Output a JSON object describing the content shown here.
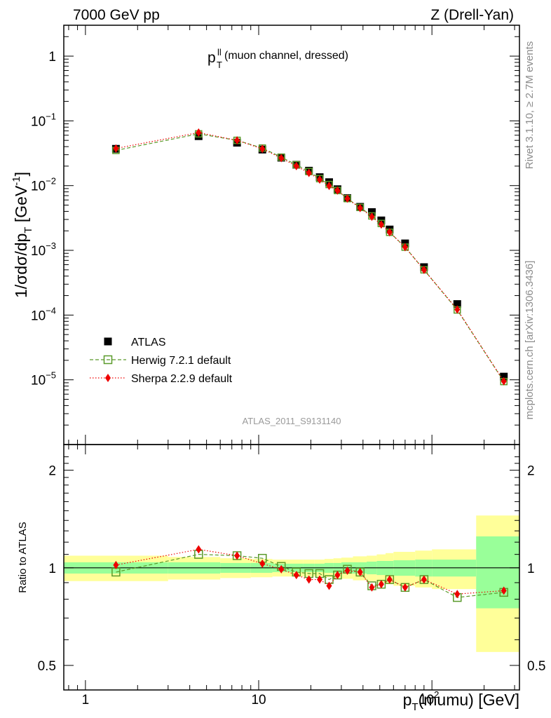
{
  "header": {
    "left": "7000 GeV pp",
    "right": "Z (Drell-Yan)"
  },
  "side": {
    "rivet": "Rivet 3.1.10, ≥ 2.7M events",
    "mcplots": "mcplots.cern.ch [arXiv:1306.3436]"
  },
  "plot_label": {
    "main": "p",
    "sup": "ll",
    "sub": "T",
    "rest": " (muon channel, dressed)"
  },
  "analysis_tag": "ATLAS_2011_S9131140",
  "legend": [
    {
      "label": "ATLAS",
      "marker": "square-filled",
      "color": "#000000"
    },
    {
      "label": "Herwig 7.2.1 default",
      "marker": "square-open",
      "color": "#5a9a2a"
    },
    {
      "label": "Sherpa 2.2.9 default",
      "marker": "diamond",
      "color": "#ee0000"
    }
  ],
  "colors": {
    "band_inner": "#99ff99",
    "band_outer": "#ffff99",
    "herwig": "#5a9a2a",
    "sherpa": "#ee0000",
    "data": "#000000"
  },
  "chart_data": [
    {
      "type": "scatter",
      "xscale": "log",
      "yscale": "log",
      "xlim": [
        0.75,
        320
      ],
      "ylim": [
        1e-06,
        3
      ],
      "ylabel": "1/σdσ/dp_T [GeV^-1]",
      "y_ticks": [
        {
          "v": 1e-05,
          "base": "10",
          "exp": "−5"
        },
        {
          "v": 0.0001,
          "base": "10",
          "exp": "−4"
        },
        {
          "v": 0.001,
          "base": "10",
          "exp": "−3"
        },
        {
          "v": 0.01,
          "base": "10",
          "exp": "−2"
        },
        {
          "v": 0.1,
          "base": "10",
          "exp": "−1"
        },
        {
          "v": 1,
          "base": "1",
          "exp": ""
        }
      ],
      "x": [
        1.5,
        4.5,
        7.5,
        10.5,
        13.5,
        16.5,
        19.5,
        22.5,
        25.5,
        28.5,
        32.5,
        38.5,
        45,
        51,
        57,
        70,
        90,
        140,
        260
      ],
      "series": [
        {
          "name": "ATLAS",
          "values": [
            0.037,
            0.058,
            0.046,
            0.036,
            0.027,
            0.021,
            0.017,
            0.0135,
            0.0113,
            0.0088,
            0.0064,
            0.0047,
            0.0039,
            0.0029,
            0.0021,
            0.00128,
            0.00055,
            0.000148,
            1.12e-05
          ]
        },
        {
          "name": "Herwig 7.2.1 default",
          "values": [
            0.035,
            0.063,
            0.05,
            0.038,
            0.0275,
            0.021,
            0.0165,
            0.0128,
            0.0104,
            0.0084,
            0.0063,
            0.0046,
            0.0034,
            0.0026,
            0.0019,
            0.00112,
            0.0005,
            0.00012,
            9.4e-06
          ]
        },
        {
          "name": "Sherpa 2.2.9 default",
          "values": [
            0.0375,
            0.066,
            0.05,
            0.037,
            0.0266,
            0.02,
            0.0157,
            0.0124,
            0.0099,
            0.0084,
            0.0063,
            0.0045,
            0.0033,
            0.0025,
            0.0019,
            0.00112,
            0.0005,
            0.000122,
            9.5e-06
          ]
        }
      ]
    },
    {
      "type": "scatter",
      "xscale": "log",
      "yscale": "log",
      "xlim": [
        0.75,
        320
      ],
      "ylim": [
        0.42,
        2.4
      ],
      "ylabel": "Ratio to ATLAS",
      "xlabel": "p_T(mumu) [GeV]",
      "y_ticks": [
        {
          "v": 0.5,
          "label": "0.5"
        },
        {
          "v": 1,
          "label": "1"
        },
        {
          "v": 2,
          "label": "2"
        }
      ],
      "x_ticks": [
        {
          "v": 1,
          "base": "1",
          "exp": ""
        },
        {
          "v": 10,
          "base": "10",
          "exp": ""
        },
        {
          "v": 100,
          "base": "10",
          "exp": "2"
        }
      ],
      "x": [
        1.5,
        4.5,
        7.5,
        10.5,
        13.5,
        16.5,
        19.5,
        22.5,
        25.5,
        28.5,
        32.5,
        38.5,
        45,
        51,
        57,
        70,
        90,
        140,
        260
      ],
      "bins": [
        0.75,
        3,
        6,
        9,
        12,
        15,
        18,
        21,
        24,
        27,
        30,
        35,
        42,
        48,
        54,
        60,
        80,
        100,
        180,
        320
      ],
      "band_inner": [
        0.04,
        0.04,
        0.035,
        0.035,
        0.03,
        0.03,
        0.03,
        0.03,
        0.035,
        0.035,
        0.04,
        0.04,
        0.045,
        0.05,
        0.05,
        0.055,
        0.06,
        0.06,
        0.25
      ],
      "band_outer": [
        0.09,
        0.08,
        0.07,
        0.065,
        0.06,
        0.06,
        0.06,
        0.06,
        0.065,
        0.07,
        0.075,
        0.085,
        0.09,
        0.1,
        0.11,
        0.12,
        0.13,
        0.14,
        0.45
      ],
      "series": [
        {
          "name": "Herwig 7.2.1 default",
          "values": [
            0.97,
            1.1,
            1.09,
            1.07,
            1.01,
            0.97,
            0.96,
            0.96,
            0.92,
            0.95,
            0.99,
            0.97,
            0.88,
            0.89,
            0.92,
            0.87,
            0.92,
            0.81,
            0.84
          ]
        },
        {
          "name": "Sherpa 2.2.9 default",
          "values": [
            1.02,
            1.14,
            1.09,
            1.03,
            0.99,
            0.95,
            0.92,
            0.92,
            0.88,
            0.95,
            0.98,
            0.97,
            0.87,
            0.89,
            0.92,
            0.87,
            0.92,
            0.83,
            0.85
          ]
        }
      ]
    }
  ]
}
